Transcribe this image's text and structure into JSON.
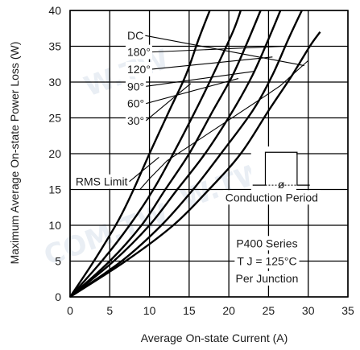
{
  "chart_data": {
    "type": "line",
    "xlabel": "Average On-state Current (A)",
    "ylabel": "Maximum Average On-state Power Loss (W)",
    "xlim": [
      0,
      35
    ],
    "ylim": [
      0,
      40
    ],
    "x_ticks": [
      0,
      5,
      10,
      15,
      20,
      25,
      30,
      35
    ],
    "y_ticks": [
      0,
      5,
      10,
      15,
      20,
      25,
      30,
      35,
      40
    ],
    "grid": true,
    "series": [
      {
        "name": "30°",
        "points": [
          [
            0,
            0
          ],
          [
            3,
            5
          ],
          [
            6,
            10.5
          ],
          [
            8,
            15
          ],
          [
            10,
            20
          ],
          [
            12.5,
            26
          ],
          [
            14.6,
            31
          ],
          [
            16.2,
            36
          ],
          [
            17.6,
            40
          ]
        ]
      },
      {
        "name": "60°",
        "points": [
          [
            0,
            0
          ],
          [
            4,
            5
          ],
          [
            7.5,
            10
          ],
          [
            10.5,
            15
          ],
          [
            13,
            20
          ],
          [
            15.8,
            26
          ],
          [
            18,
            31
          ],
          [
            20.5,
            37
          ],
          [
            21.5,
            40
          ]
        ]
      },
      {
        "name": "90°",
        "points": [
          [
            0,
            0
          ],
          [
            5,
            5
          ],
          [
            9,
            10
          ],
          [
            12,
            15
          ],
          [
            15,
            20
          ],
          [
            18,
            26
          ],
          [
            20.5,
            31
          ],
          [
            22.5,
            36
          ],
          [
            24,
            40
          ]
        ]
      },
      {
        "name": "120°",
        "points": [
          [
            0,
            0
          ],
          [
            5.5,
            5
          ],
          [
            10,
            10
          ],
          [
            13.5,
            15
          ],
          [
            17,
            20
          ],
          [
            20.5,
            26
          ],
          [
            23,
            31
          ],
          [
            25,
            36
          ],
          [
            26.5,
            40
          ]
        ]
      },
      {
        "name": "180°",
        "points": [
          [
            0,
            0
          ],
          [
            6.5,
            5
          ],
          [
            11.5,
            10
          ],
          [
            15.5,
            15
          ],
          [
            19,
            20
          ],
          [
            23,
            26
          ],
          [
            25.5,
            31
          ],
          [
            27.5,
            36
          ],
          [
            29.2,
            40
          ]
        ]
      },
      {
        "name": "DC",
        "points": [
          [
            0,
            0
          ],
          [
            7,
            5
          ],
          [
            13,
            10
          ],
          [
            17.5,
            15
          ],
          [
            21.5,
            20
          ],
          [
            25,
            26
          ],
          [
            28,
            31
          ],
          [
            30.2,
            35
          ],
          [
            31.5,
            37
          ]
        ]
      }
    ],
    "rms_limit": {
      "label": "RMS Limit",
      "points": [
        [
          8.8,
          15
        ],
        [
          10,
          16.5
        ],
        [
          12.2,
          19
        ],
        [
          24.5,
          28
        ],
        [
          26.5,
          29.5
        ],
        [
          30,
          33
        ]
      ]
    },
    "legend_labels": [
      "DC",
      "180°",
      "120°",
      "90°",
      "60°",
      "30°"
    ],
    "annotations": {
      "rms_limit": "RMS Limit",
      "conduction": "Conduction Period",
      "conduction_symbol": "ø",
      "series_name": "P400 Series",
      "tj": "T J = 125°C",
      "junction": "Per Junction"
    }
  }
}
